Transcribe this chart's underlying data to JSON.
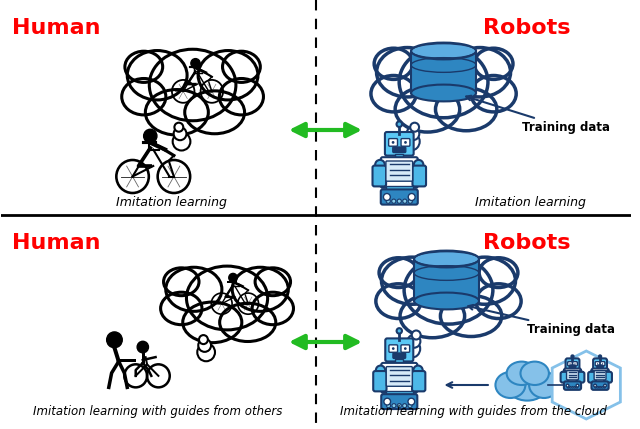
{
  "background_color": "#ffffff",
  "human_color": "#ff0000",
  "robots_color": "#ff0000",
  "arrow_color": "#22bb22",
  "thought_bubble_lw": 2.2,
  "training_data_text": "Training data",
  "imitation_learning_text": "Imitation learning",
  "guide_others_text": "Imitation learning with guides from others",
  "guide_cloud_text": "Imitation learning with guides from the cloud",
  "quadrant_labels": {
    "top_left_human": "Human",
    "top_right_robots": "Robots",
    "bottom_left_human": "Human",
    "bottom_right_robots": "Robots"
  }
}
